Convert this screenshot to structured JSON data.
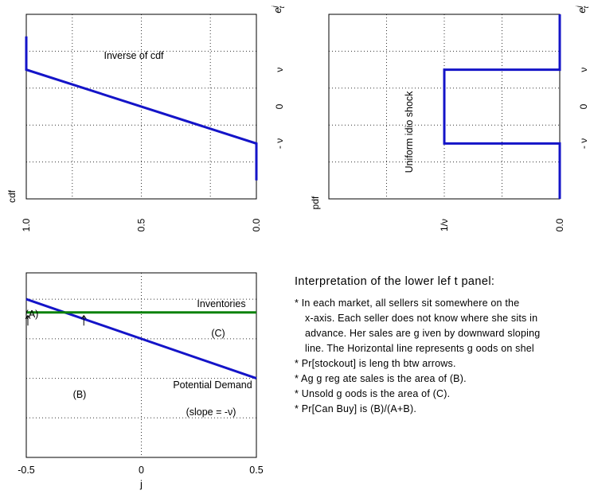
{
  "colors": {
    "curve": "#1414c8",
    "inventory": "#0a820a",
    "grid": "#333333"
  },
  "chart_data": [
    {
      "type": "line",
      "panel": "upper-left",
      "note": "rotated panel: horizontal axis shows cdf (decreasing left to right), vertical axis shows e_t^j",
      "series": [
        {
          "x": [
            1.0,
            1.0,
            0.0,
            0.0
          ],
          "y": [
            1.9,
            1.0,
            -1.0,
            -2.0
          ]
        }
      ],
      "annotations": [
        "Inverse of cdf"
      ],
      "xlabel": "cdf",
      "ylabel": "e",
      "ylabel_sup": "j",
      "ylabel_sub": "t",
      "xticks": [
        "1.0",
        "0.5",
        "0.0"
      ],
      "yticks": [
        "ν",
        "0",
        "- ν"
      ],
      "xlim": [
        1.0,
        0.0
      ],
      "ylim": [
        -2.5,
        2.5
      ],
      "grid": true
    },
    {
      "type": "line",
      "panel": "upper-right",
      "note": "rotated panel: horizontal axis shows pdf (decreasing left to right), vertical axis shows e_t^j",
      "series": [
        {
          "x": [
            0.0,
            0.0,
            1.0,
            1.0,
            0.0,
            0.0
          ],
          "y": [
            2.5,
            1.0,
            1.0,
            -1.0,
            -1.0,
            -2.5
          ]
        }
      ],
      "annotations": [
        "Uniform idio shock"
      ],
      "xlabel": "pdf",
      "ylabel": "e",
      "ylabel_sup": "j",
      "ylabel_sub": "t",
      "xticks": [
        "1/ν",
        "0.0"
      ],
      "yticks": [
        "ν",
        "0",
        "- ν"
      ],
      "xlim": [
        2.0,
        0.0
      ],
      "ylim": [
        -2.5,
        2.5
      ],
      "grid": true
    },
    {
      "type": "line",
      "panel": "lower-left",
      "series": [
        {
          "x": [
            -0.5,
            0.5
          ],
          "y": [
            0.3,
            -0.3
          ]
        },
        {
          "x": [
            -0.5,
            0.5
          ],
          "y": [
            0.2,
            0.2
          ]
        }
      ],
      "annotations": [
        "Inventories",
        "(A)",
        "(C)",
        "Potential Demand",
        "(B)",
        "(slope = -ν)"
      ],
      "arrows": [
        {
          "x": -0.5,
          "y_from": 0.1,
          "y_to": 0.2
        },
        {
          "x": -0.25,
          "y_from": 0.1,
          "y_to": 0.2
        }
      ],
      "xlabel": "j",
      "xticks": [
        "-0.5",
        "0",
        "0.5"
      ],
      "xtick_values": [
        -0.5,
        0.0,
        0.5
      ],
      "xlim": [
        -0.5,
        0.5
      ],
      "ylim": [
        -0.9,
        0.5
      ],
      "grid": true
    }
  ],
  "notes": {
    "heading": "Interpretation of  the lower lef t panel:",
    "lines": [
      {
        "text": "* In each market, all sellers sit somewhere on the",
        "cont": false
      },
      {
        "text": "x-axis. Each seller does not know where she sits in",
        "cont": true
      },
      {
        "text": "advance. Her sales are g iven by downward sloping",
        "cont": true
      },
      {
        "text": "line. The Horizontal line represents g oods on shel",
        "cont": true
      },
      {
        "text": "* Pr[stockout] is leng th btw arrows.",
        "cont": false
      },
      {
        "text": "* Ag g reg ate sales is the area of (B).",
        "cont": false
      },
      {
        "text": "* Unsold g oods is the area of (C).",
        "cont": false
      },
      {
        "text": "* Pr[Can Buy] is (B)/(A+B).",
        "cont": false
      }
    ]
  }
}
